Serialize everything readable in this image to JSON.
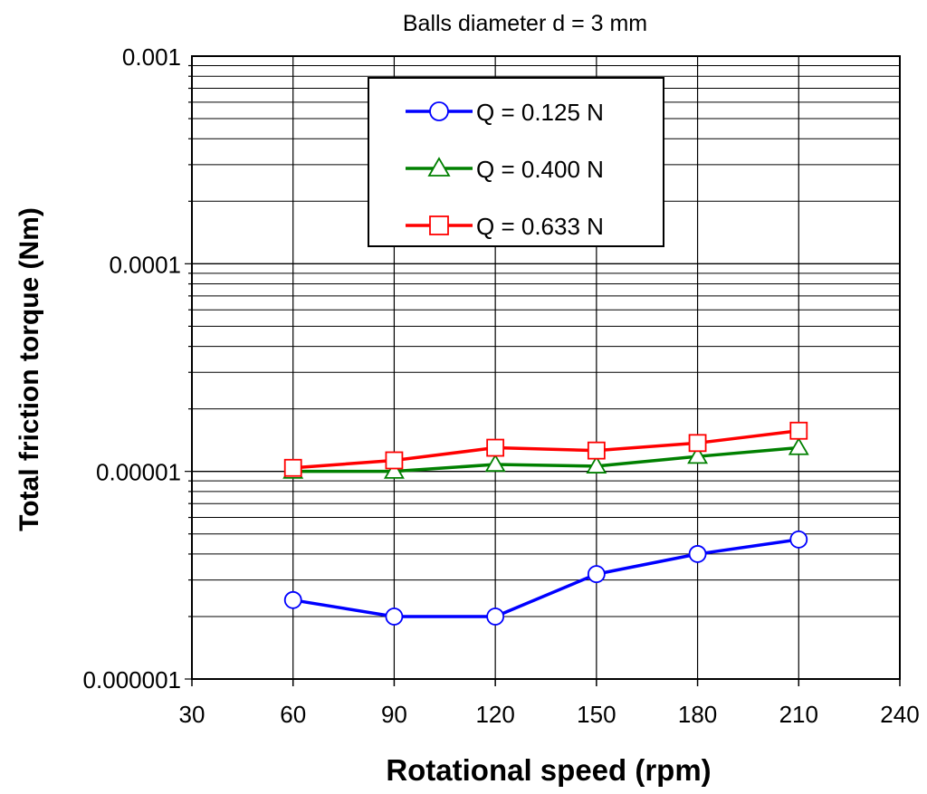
{
  "chart_data": {
    "type": "line",
    "title": "Balls diameter d = 3 mm",
    "xlabel": "Rotational speed (rpm)",
    "ylabel": "Total friction torque (Nm)",
    "xlim": [
      30,
      240
    ],
    "ylim": [
      1e-06,
      0.001
    ],
    "yscale": "log",
    "grid": true,
    "legend_position": "top-center",
    "x_ticks": [
      30,
      60,
      90,
      120,
      150,
      180,
      210,
      240
    ],
    "x_tick_labels": [
      "30",
      "60",
      "90",
      "120",
      "150",
      "180",
      "210",
      "240"
    ],
    "y_ticks": [
      1e-06,
      1e-05,
      0.0001,
      0.001
    ],
    "y_tick_labels": [
      "0.000001",
      "0.00001",
      "0.0001",
      "0.001"
    ],
    "series": [
      {
        "name": "Q = 0.125 N",
        "color": "#0000ff",
        "marker": "circle",
        "x": [
          60,
          90,
          120,
          150,
          180,
          210
        ],
        "values": [
          2.4e-06,
          2e-06,
          2e-06,
          3.2e-06,
          4e-06,
          4.7e-06
        ]
      },
      {
        "name": "Q = 0.400 N",
        "color": "#008000",
        "marker": "triangle",
        "x": [
          60,
          90,
          120,
          150,
          180,
          210
        ],
        "values": [
          1e-05,
          1e-05,
          1.08e-05,
          1.06e-05,
          1.18e-05,
          1.3e-05
        ]
      },
      {
        "name": "Q = 0.633 N",
        "color": "#ff0000",
        "marker": "square",
        "x": [
          60,
          90,
          120,
          150,
          180,
          210
        ],
        "values": [
          1.04e-05,
          1.13e-05,
          1.3e-05,
          1.26e-05,
          1.37e-05,
          1.57e-05
        ]
      }
    ]
  }
}
